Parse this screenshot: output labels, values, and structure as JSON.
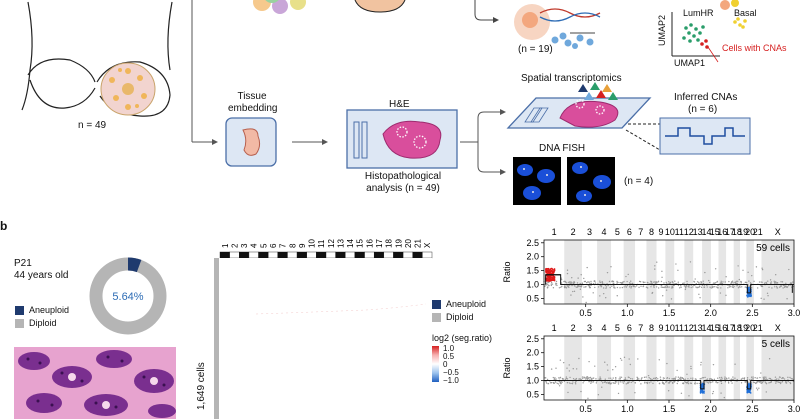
{
  "panel_a": {
    "n_left": "n = 49",
    "tissue_embedding": [
      "Tissue",
      "embedding"
    ],
    "he": "H&E",
    "histo": [
      "Histopathological",
      "analysis (n = 49)"
    ],
    "n19": "(n = 19)",
    "umap2": "UMAP2",
    "umap1": "UMAP1",
    "lumhr": "LumHR",
    "basal": "Basal",
    "cnas": "Cells with CNAs",
    "spatial": "Spatial transcriptomics",
    "inferred": "Inferred CNAs",
    "n6": "(n = 6)",
    "dnafish": "DNA FISH",
    "n4": "(n = 4)"
  },
  "panel_b": {
    "label": "b",
    "patient": "P21",
    "age": "44 years old",
    "legend": [
      "Aneuploid",
      "Diploid"
    ],
    "legend_colors": [
      "#1f3a6e",
      "#b5b5b5"
    ],
    "donut": {
      "aneuploid_pct": 5.64,
      "label": "5.64%"
    },
    "cells": "1,649 cells",
    "heat_chrom": [
      "1",
      "2",
      "3",
      "4",
      "5",
      "6",
      "7",
      "8",
      "9",
      "10",
      "11",
      "12",
      "13",
      "14",
      "15",
      "16",
      "17",
      "18",
      "19",
      "20",
      "21",
      "X"
    ],
    "heat_legend": [
      "Aneuploid",
      "Diploid"
    ],
    "scale_title": "log2 (seg.ratio)",
    "scale_ticks": [
      "1.0",
      "0.5",
      "0",
      "−0.5",
      "−1.0"
    ],
    "ratio_plots": [
      {
        "chrom": [
          "1",
          "2",
          "3",
          "4",
          "5",
          "6",
          "7",
          "8",
          "9",
          "10",
          "11",
          "12",
          "13",
          "14",
          "15",
          "16",
          "17",
          "18",
          "19",
          "20",
          "21",
          "X"
        ],
        "yticks": [
          "2.5",
          "2.0",
          "1.5",
          "1.0",
          "0.5"
        ],
        "ylabel": "Ratio",
        "xticks": [
          "0.5",
          "1.0",
          "1.5",
          "2.0",
          "2.5",
          "3.0"
        ],
        "count": "59 cells"
      },
      {
        "chrom": [
          "1",
          "2",
          "3",
          "4",
          "5",
          "6",
          "7",
          "8",
          "9",
          "10",
          "11",
          "12",
          "13",
          "14",
          "15",
          "16",
          "17",
          "18",
          "19",
          "20",
          "21",
          "X"
        ],
        "yticks": [
          "2.5",
          "2.0",
          "1.5",
          "1.0",
          "0.5"
        ],
        "ylabel": "Ratio",
        "xticks": [
          "0.5",
          "1.0",
          "1.5",
          "2.0",
          "2.5",
          "3.0"
        ],
        "count": "5 cells"
      }
    ]
  }
}
